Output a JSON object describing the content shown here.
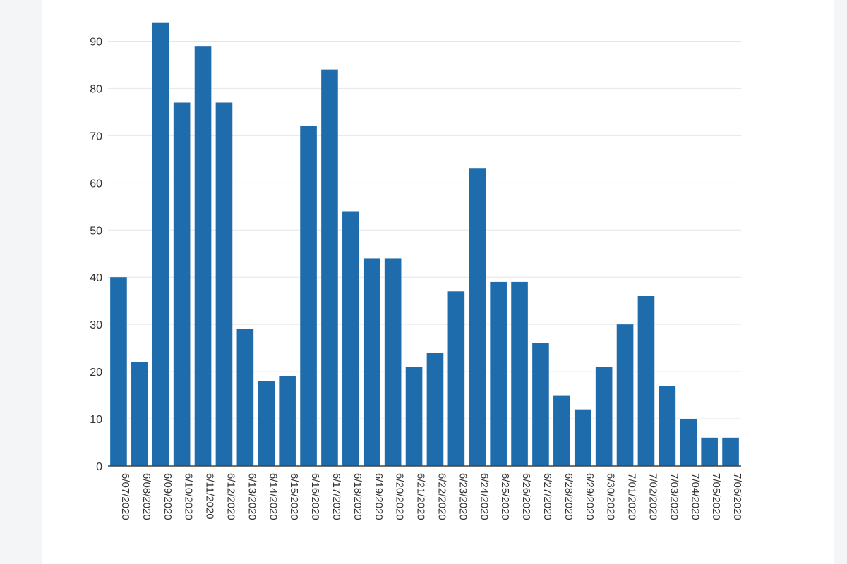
{
  "chart_data": {
    "type": "bar",
    "title": "",
    "xlabel": "",
    "ylabel": "",
    "ylim": [
      0,
      95
    ],
    "yticks": [
      0,
      10,
      20,
      30,
      40,
      50,
      60,
      70,
      80,
      90
    ],
    "grid": true,
    "color": "#1f6cad",
    "categories": [
      "6/07/2020",
      "6/08/2020",
      "6/09/2020",
      "6/10/2020",
      "6/11/2020",
      "6/12/2020",
      "6/13/2020",
      "6/14/2020",
      "6/15/2020",
      "6/16/2020",
      "6/17/2020",
      "6/18/2020",
      "6/19/2020",
      "6/20/2020",
      "6/21/2020",
      "6/22/2020",
      "6/23/2020",
      "6/24/2020",
      "6/25/2020",
      "6/26/2020",
      "6/27/2020",
      "6/28/2020",
      "6/29/2020",
      "6/30/2020",
      "7/01/2020",
      "7/02/2020",
      "7/03/2020",
      "7/04/2020",
      "7/05/2020",
      "7/06/2020"
    ],
    "values": [
      40,
      22,
      94,
      77,
      89,
      77,
      29,
      18,
      19,
      72,
      84,
      54,
      44,
      44,
      21,
      24,
      37,
      63,
      39,
      39,
      26,
      15,
      12,
      21,
      30,
      36,
      17,
      10,
      6,
      6
    ]
  }
}
